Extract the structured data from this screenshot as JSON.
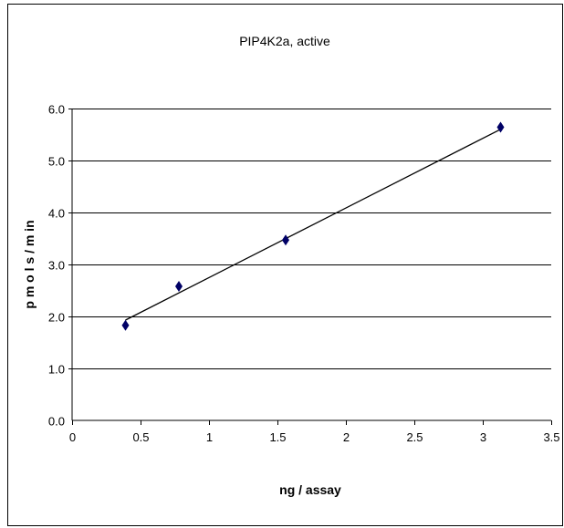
{
  "chart_data": {
    "type": "scatter",
    "title": "PIP4K2a, active",
    "xlabel": "ng / assay",
    "ylabel": "p m o l s / m in",
    "xlim": [
      0,
      3.5
    ],
    "ylim": [
      0,
      6.0
    ],
    "x_ticks": [
      "0",
      "0.5",
      "1",
      "1.5",
      "2",
      "2.5",
      "3",
      "3.5"
    ],
    "y_ticks": [
      "0.0",
      "1.0",
      "2.0",
      "3.0",
      "4.0",
      "5.0",
      "6.0"
    ],
    "grid": "horizontal",
    "series": [
      {
        "points": [
          {
            "x": 0.39,
            "y": 1.83
          },
          {
            "x": 0.78,
            "y": 2.58
          },
          {
            "x": 1.56,
            "y": 3.47
          },
          {
            "x": 3.13,
            "y": 5.64
          }
        ],
        "marker_color": "#000066",
        "trendline": {
          "type": "linear",
          "x": [
            0.39,
            3.13
          ],
          "y": [
            1.93,
            5.6
          ]
        }
      }
    ]
  }
}
